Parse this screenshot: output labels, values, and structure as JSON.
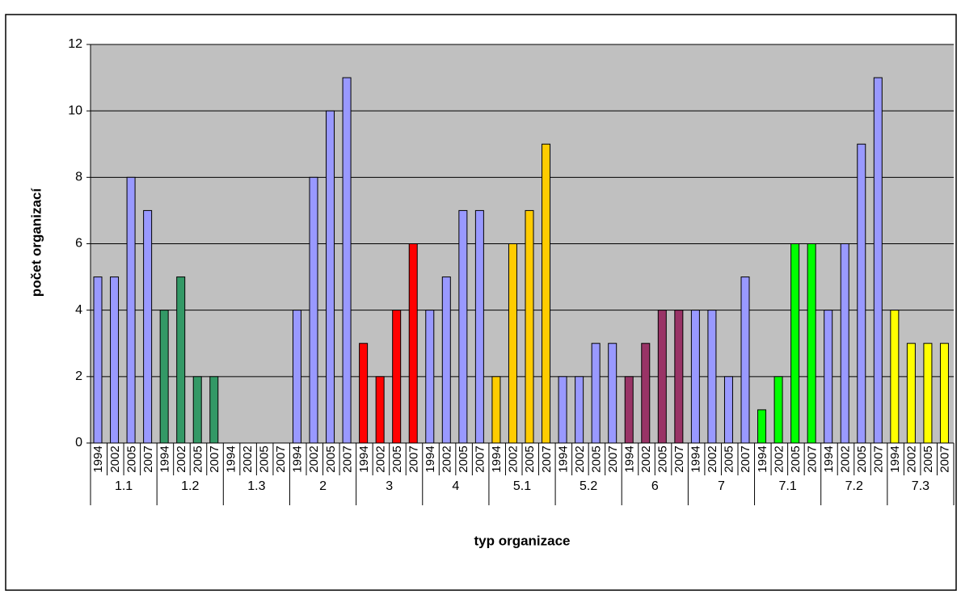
{
  "chart_data": {
    "type": "bar",
    "y_label": "počet organizací",
    "x_label": "typ organizace",
    "subcategories": [
      "1994",
      "2002",
      "2005",
      "2007"
    ],
    "groups": [
      {
        "name": "1.1",
        "color": "#9999ff",
        "values": [
          5,
          5,
          8,
          7
        ]
      },
      {
        "name": "1.2",
        "color": "#339966",
        "values": [
          4,
          5,
          2,
          2
        ]
      },
      {
        "name": "1.3",
        "color": "#9999ff",
        "values": [
          0,
          0,
          0,
          0
        ]
      },
      {
        "name": "2",
        "color": "#9999ff",
        "values": [
          4,
          8,
          10,
          11
        ]
      },
      {
        "name": "3",
        "color": "#ff0000",
        "values": [
          3,
          2,
          4,
          6
        ]
      },
      {
        "name": "4",
        "color": "#9999ff",
        "values": [
          4,
          5,
          7,
          7
        ]
      },
      {
        "name": "5.1",
        "color": "#ffcc00",
        "values": [
          2,
          6,
          7,
          9
        ]
      },
      {
        "name": "5.2",
        "color": "#9999ff",
        "values": [
          2,
          2,
          3,
          3
        ]
      },
      {
        "name": "6",
        "color": "#993366",
        "values": [
          2,
          3,
          4,
          4
        ]
      },
      {
        "name": "7",
        "color": "#9999ff",
        "values": [
          4,
          4,
          2,
          5
        ]
      },
      {
        "name": "7.1",
        "color": "#00ff00",
        "values": [
          1,
          2,
          6,
          6
        ]
      },
      {
        "name": "7.2",
        "color": "#9999ff",
        "values": [
          4,
          6,
          9,
          11
        ]
      },
      {
        "name": "7.3",
        "color": "#ffff00",
        "values": [
          4,
          3,
          3,
          3
        ]
      }
    ],
    "ylim": [
      0,
      12
    ],
    "yticks": [
      0,
      2,
      4,
      6,
      8,
      10,
      12
    ],
    "grid": true
  }
}
